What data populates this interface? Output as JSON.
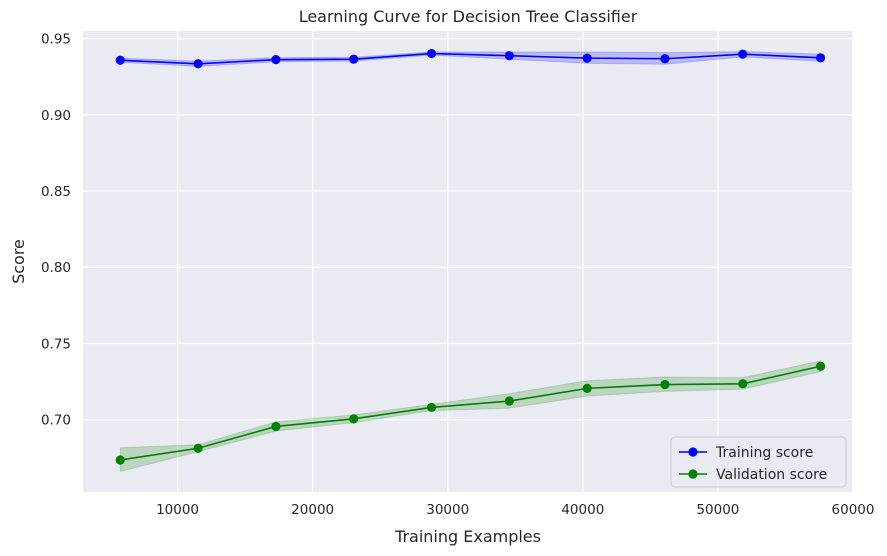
{
  "chart_data": {
    "type": "line",
    "title": "Learning Curve for Decision Tree Classifier",
    "xlabel": "Training Examples",
    "ylabel": "Score",
    "xlim": [
      3000,
      60000
    ],
    "ylim": [
      0.6525,
      0.955
    ],
    "xticks": [
      10000,
      20000,
      30000,
      40000,
      50000,
      60000
    ],
    "xtick_labels": [
      "10000",
      "20000",
      "30000",
      "40000",
      "50000",
      "60000"
    ],
    "yticks": [
      0.7,
      0.75,
      0.8,
      0.85,
      0.9,
      0.95
    ],
    "ytick_labels": [
      "0.70",
      "0.75",
      "0.80",
      "0.85",
      "0.90",
      "0.95"
    ],
    "grid": true,
    "legend_position": "lower-right",
    "x": [
      5760,
      11520,
      17280,
      23040,
      28800,
      34560,
      40320,
      46080,
      51840,
      57600
    ],
    "series": [
      {
        "name": "Training score",
        "color": "#0000ff",
        "values": [
          0.9358,
          0.9335,
          0.9362,
          0.9365,
          0.9402,
          0.9388,
          0.9372,
          0.9368,
          0.9398,
          0.9374
        ],
        "band_upper": [
          0.9372,
          0.9352,
          0.9375,
          0.9378,
          0.9412,
          0.9412,
          0.9412,
          0.9408,
          0.9415,
          0.9398
        ],
        "band_lower": [
          0.9345,
          0.9318,
          0.9348,
          0.9352,
          0.9392,
          0.9365,
          0.9338,
          0.9332,
          0.938,
          0.9352
        ]
      },
      {
        "name": "Validation score",
        "color": "#008000",
        "values": [
          0.6735,
          0.6812,
          0.6955,
          0.7005,
          0.708,
          0.7122,
          0.7205,
          0.723,
          0.7235,
          0.735
        ],
        "band_upper": [
          0.6815,
          0.6835,
          0.6985,
          0.703,
          0.71,
          0.717,
          0.7255,
          0.728,
          0.7275,
          0.7385
        ],
        "band_lower": [
          0.666,
          0.679,
          0.6925,
          0.698,
          0.706,
          0.7075,
          0.7155,
          0.7185,
          0.72,
          0.7315
        ]
      }
    ]
  }
}
